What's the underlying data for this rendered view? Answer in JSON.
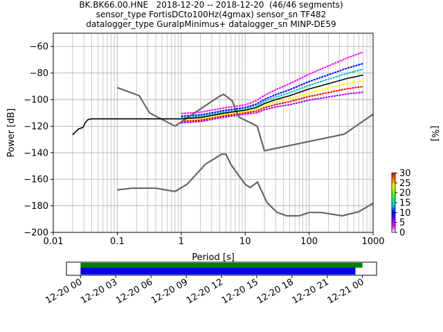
{
  "title_lines": [
    "BK.BK66.00.HNE   2018-12-20 -- 2018-12-20  (46/46 segments)",
    "sensor_type FortisDCto100Hz(4gmax) sensor_sn TF482",
    "datalogger_type GuralpMinimus+ datalogger_sn MINP-DE59"
  ],
  "chart_data": [
    {
      "type": "heatmap",
      "name": "ppsd",
      "xlabel": "Period [s]",
      "ylabel": "Power [dB]",
      "x_scale": "log",
      "xlim": [
        0.01,
        1000
      ],
      "ylim": [
        -200,
        -50
      ],
      "x_ticks": [
        0.01,
        0.1,
        1,
        10,
        100,
        1000
      ],
      "x_tick_labels": [
        "0.01",
        "0.1",
        "1",
        "10",
        "100",
        "1000"
      ],
      "y_ticks": [
        -200,
        -180,
        -160,
        -140,
        -120,
        -100,
        -80,
        -60
      ],
      "y_tick_labels": [
        "−200",
        "−180",
        "−160",
        "−140",
        "−120",
        "−100",
        "−80",
        "−60"
      ],
      "grid": true,
      "noise_models": [
        {
          "name": "NHNM",
          "color": "#666666",
          "points": [
            [
              0.1,
              -91
            ],
            [
              0.22,
              -97
            ],
            [
              0.32,
              -110
            ],
            [
              0.8,
              -120
            ],
            [
              3.8,
              -98
            ],
            [
              4.6,
              -96
            ],
            [
              6.3,
              -101
            ],
            [
              7.9,
              -113
            ],
            [
              15.4,
              -120
            ],
            [
              20,
              -138.5
            ],
            [
              354.8,
              -126
            ],
            [
              1000,
              -111
            ]
          ]
        },
        {
          "name": "NLNM",
          "color": "#666666",
          "points": [
            [
              0.1,
              -168
            ],
            [
              0.17,
              -166.7
            ],
            [
              0.4,
              -166.7
            ],
            [
              0.8,
              -169.2
            ],
            [
              1.24,
              -163.7
            ],
            [
              2.4,
              -148.6
            ],
            [
              4.3,
              -141.1
            ],
            [
              5,
              -141.1
            ],
            [
              6,
              -149
            ],
            [
              10,
              -163.8
            ],
            [
              12,
              -166.2
            ],
            [
              15.6,
              -162.1
            ],
            [
              21.9,
              -177.5
            ],
            [
              31.6,
              -185
            ],
            [
              45,
              -187.5
            ],
            [
              70,
              -187.5
            ],
            [
              101,
              -185
            ],
            [
              154,
              -185
            ],
            [
              328,
              -187.5
            ],
            [
              600,
              -184.4
            ],
            [
              1000,
              -178
            ]
          ]
        }
      ],
      "mode_curve": {
        "color": "#000000",
        "points": [
          [
            0.02,
            -126.5
          ],
          [
            0.025,
            -122
          ],
          [
            0.029,
            -121
          ],
          [
            0.032,
            -117
          ],
          [
            0.035,
            -115
          ],
          [
            0.04,
            -114.5
          ],
          [
            0.1,
            -114.5
          ],
          [
            1,
            -114.5
          ],
          [
            2,
            -113.5
          ],
          [
            5,
            -110
          ],
          [
            10,
            -108
          ],
          [
            15,
            -106
          ],
          [
            20,
            -103
          ],
          [
            30,
            -100
          ],
          [
            50,
            -97
          ],
          [
            100,
            -92
          ],
          [
            200,
            -88
          ],
          [
            400,
            -84
          ],
          [
            700,
            -81.5
          ]
        ]
      },
      "spread_bands": [
        {
          "color": "#ff00ff",
          "offset": 4
        },
        {
          "color": "#0000ff",
          "offset": 2
        },
        {
          "color": "#00bfbf",
          "offset": 1
        },
        {
          "color": "#ffff00",
          "offset": -1
        },
        {
          "color": "#ff0000",
          "offset": -2
        },
        {
          "color": "#a000ff",
          "offset": -3
        }
      ],
      "colorbar": {
        "label": "[%]",
        "range": [
          0,
          30
        ],
        "ticks": [
          0,
          5,
          10,
          15,
          20,
          25,
          30
        ],
        "tick_labels": [
          "0",
          "5",
          "10",
          "15",
          "20",
          "25",
          "30"
        ],
        "colormap": [
          "#ffffff",
          "#ff00ff",
          "#8000ff",
          "#0000ff",
          "#00c0ff",
          "#00ff80",
          "#80ff00",
          "#ffff00",
          "#ff8000",
          "#ff0000"
        ]
      }
    },
    {
      "type": "timeline",
      "name": "data-coverage",
      "x_tick_labels": [
        "12-20 00",
        "12-20 03",
        "12-20 06",
        "12-20 09",
        "12-20 12",
        "12-20 15",
        "12-20 18",
        "12-20 21",
        "12-21 00"
      ],
      "range_hours": [
        -1.2,
        25.2
      ],
      "bars": [
        {
          "name": "used-data",
          "color": "#008000",
          "start_hour": 0,
          "end_hour": 24.0
        },
        {
          "name": "all-data",
          "color": "#0000ff",
          "start_hour": 0,
          "end_hour": 23.4
        }
      ]
    }
  ]
}
